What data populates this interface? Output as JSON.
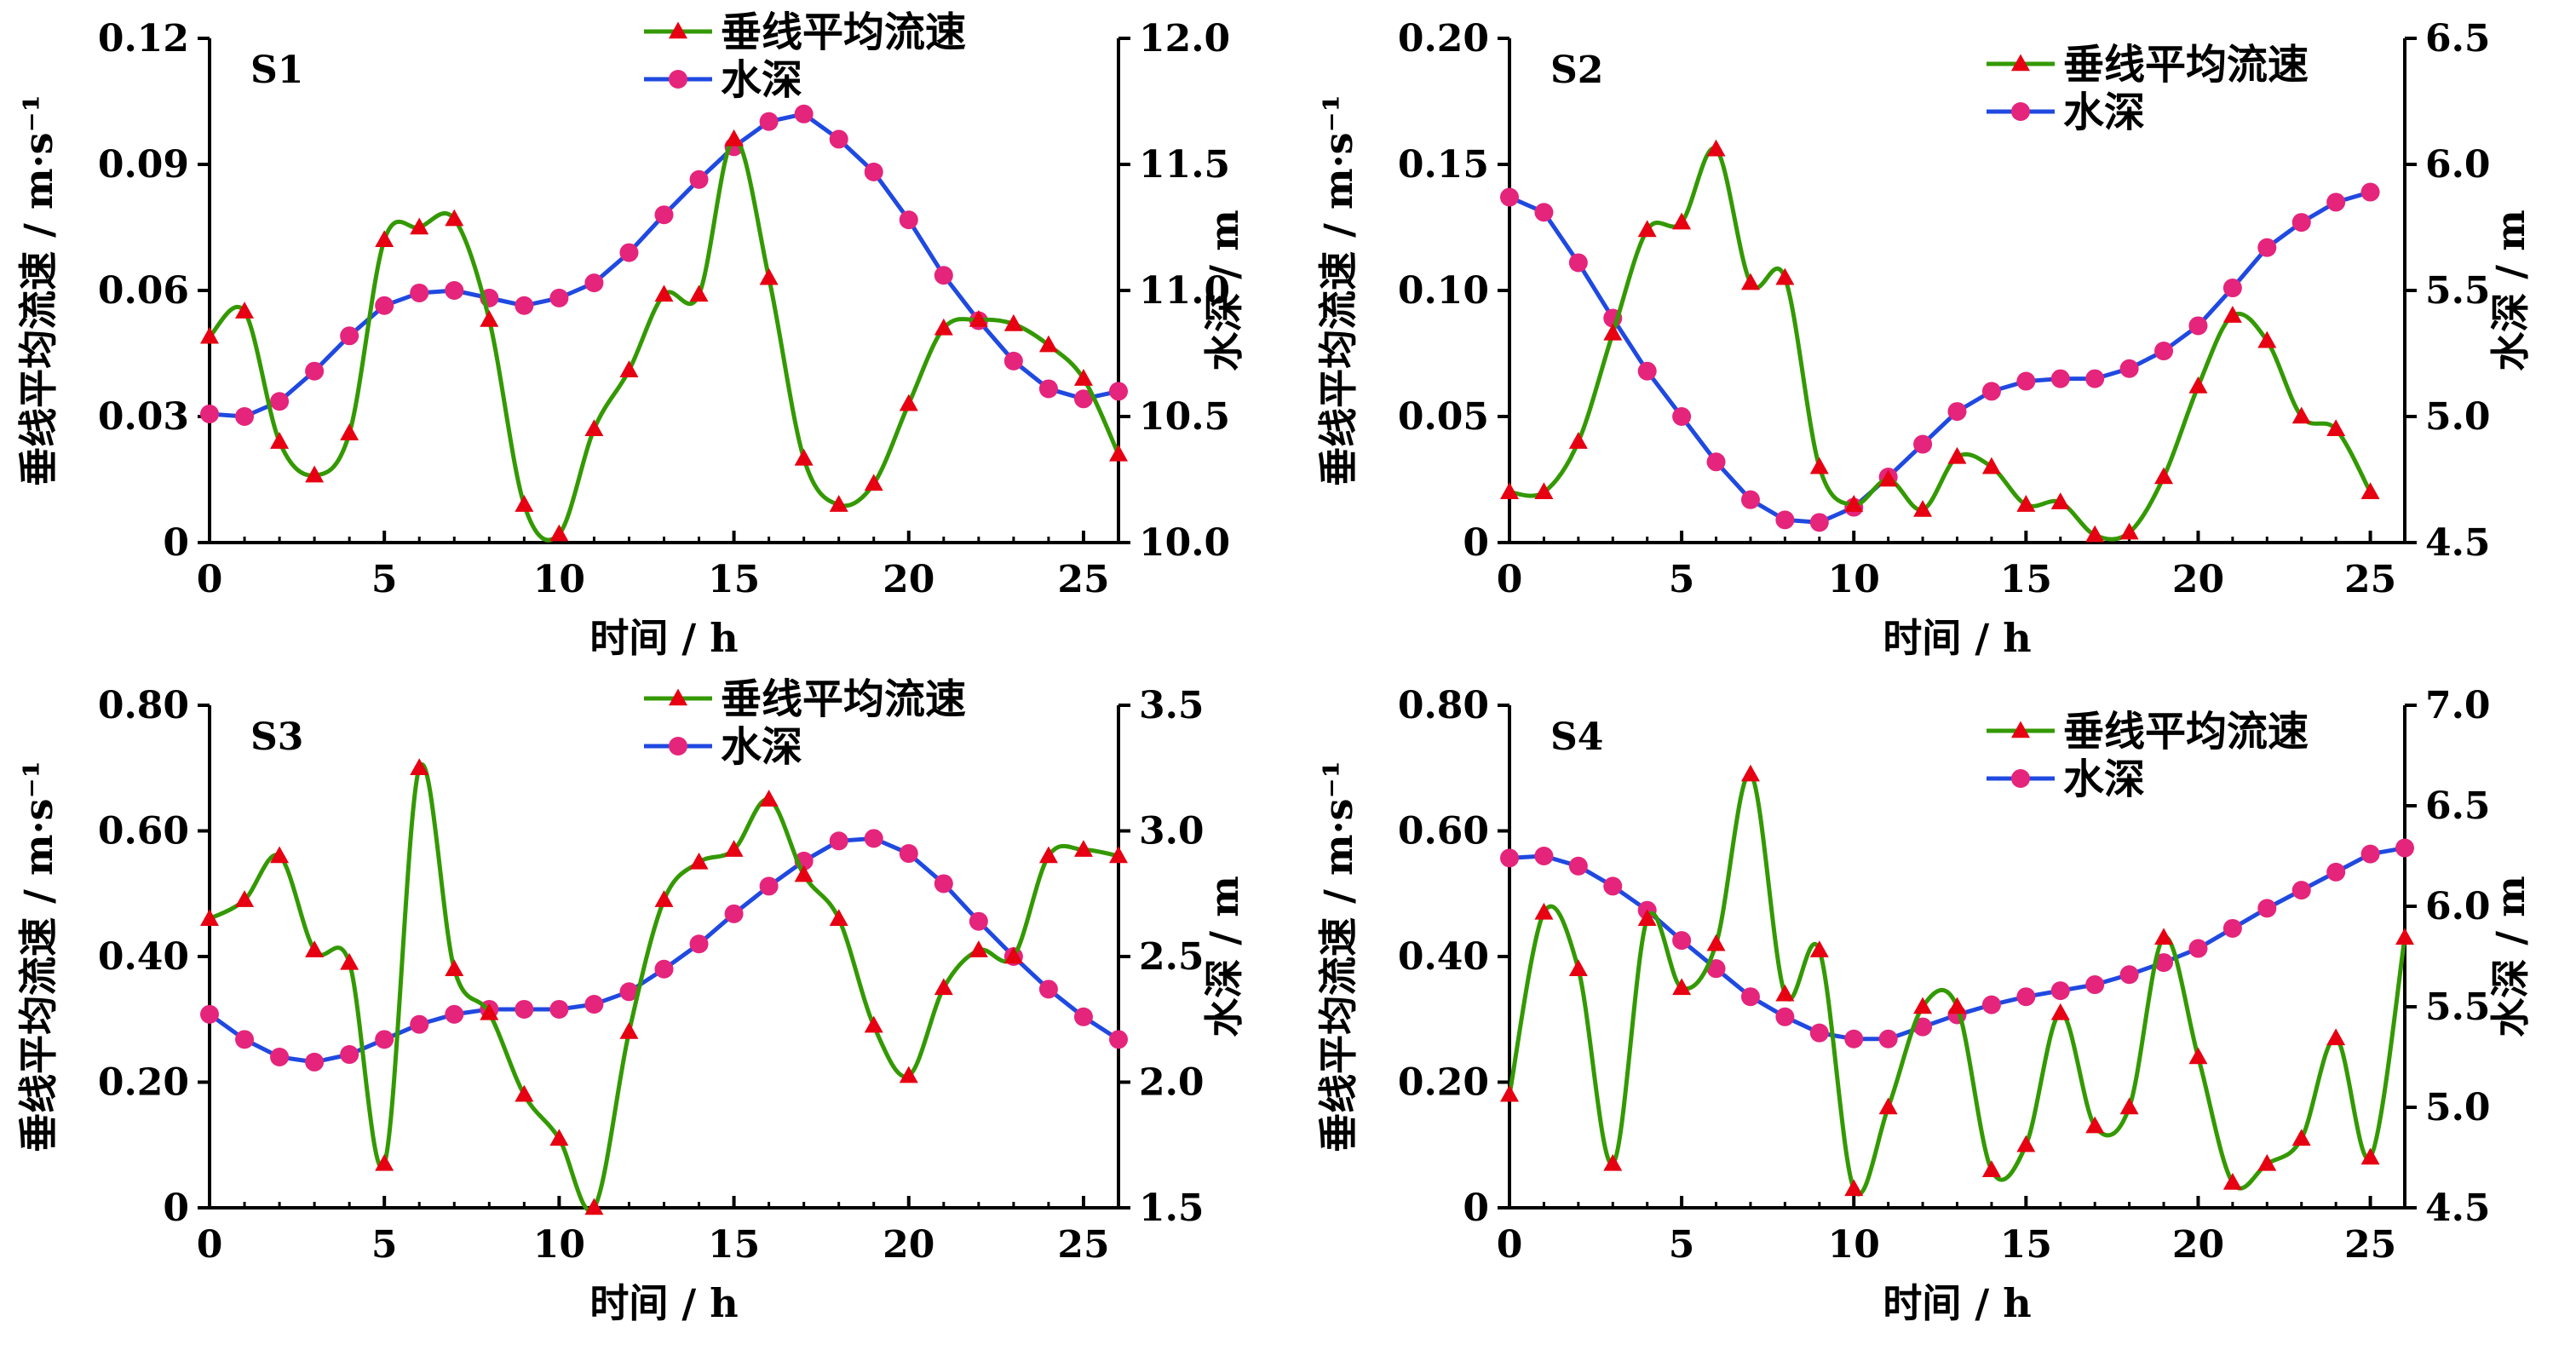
{
  "chart_data": [
    {
      "type": "line",
      "title": "S1",
      "xlabel": "时间 / h",
      "ylabel_left": "垂线平均流速 / m·s⁻¹",
      "ylabel_right": "水深 / m",
      "xlim": [
        0,
        26
      ],
      "ylim_left": [
        0,
        0.12
      ],
      "ylim_right": [
        10.0,
        12.0
      ],
      "x_ticks": [
        "0",
        "5",
        "10",
        "15",
        "20",
        "25"
      ],
      "y_ticks_left": [
        "0",
        "0.03",
        "0.06",
        "0.09",
        "0.12"
      ],
      "y_ticks_right": [
        "10.0",
        "10.5",
        "11.0",
        "11.5",
        "12.0"
      ],
      "legend": [
        "垂线平均流速",
        "水深"
      ],
      "series": [
        {
          "name": "垂线平均流速",
          "axis": "left",
          "color": "#339900",
          "marker": "triangle",
          "marker_color": "#e60012",
          "x": [
            0,
            1,
            2,
            3,
            4,
            5,
            6,
            7,
            8,
            9,
            10,
            11,
            12,
            13,
            14,
            15,
            16,
            17,
            18,
            19,
            20,
            21,
            22,
            23,
            24,
            25,
            26
          ],
          "values": [
            0.049,
            0.055,
            0.024,
            0.016,
            0.026,
            0.072,
            0.075,
            0.077,
            0.053,
            0.009,
            0.002,
            0.027,
            0.041,
            0.059,
            0.059,
            0.096,
            0.063,
            0.02,
            0.009,
            0.014,
            0.033,
            0.051,
            0.053,
            0.052,
            0.047,
            0.039,
            0.021
          ]
        },
        {
          "name": "水深",
          "axis": "right",
          "color": "#1f49e0",
          "marker": "circle",
          "marker_color": "#e5247b",
          "x": [
            0,
            1,
            2,
            3,
            4,
            5,
            6,
            7,
            8,
            9,
            10,
            11,
            12,
            13,
            14,
            15,
            16,
            17,
            18,
            19,
            20,
            21,
            22,
            23,
            24,
            25,
            26
          ],
          "values": [
            10.51,
            10.5,
            10.56,
            10.68,
            10.82,
            10.94,
            10.99,
            11.0,
            10.97,
            10.94,
            10.97,
            11.03,
            11.15,
            11.3,
            11.44,
            11.57,
            11.67,
            11.7,
            11.6,
            11.47,
            11.28,
            11.06,
            10.88,
            10.72,
            10.61,
            10.57,
            10.6
          ]
        }
      ]
    },
    {
      "type": "line",
      "title": "S2",
      "xlabel": "时间 / h",
      "ylabel_left": "垂线平均流速 / m·s⁻¹",
      "ylabel_right": "水深 / m",
      "xlim": [
        0,
        26
      ],
      "ylim_left": [
        0,
        0.2
      ],
      "ylim_right": [
        4.5,
        6.5
      ],
      "x_ticks": [
        "0",
        "5",
        "10",
        "15",
        "20",
        "25"
      ],
      "y_ticks_left": [
        "0",
        "0.05",
        "0.10",
        "0.15",
        "0.20"
      ],
      "y_ticks_right": [
        "4.5",
        "5.0",
        "5.5",
        "6.0",
        "6.5"
      ],
      "legend": [
        "垂线平均流速",
        "水深"
      ],
      "series": [
        {
          "name": "垂线平均流速",
          "axis": "left",
          "color": "#339900",
          "marker": "triangle",
          "marker_color": "#e60012",
          "x": [
            0,
            1,
            2,
            3,
            4,
            5,
            6,
            7,
            8,
            9,
            10,
            11,
            12,
            13,
            14,
            15,
            16,
            17,
            18,
            19,
            20,
            21,
            22,
            23,
            24,
            25
          ],
          "values": [
            0.02,
            0.02,
            0.04,
            0.083,
            0.124,
            0.127,
            0.156,
            0.103,
            0.105,
            0.03,
            0.015,
            0.025,
            0.013,
            0.034,
            0.03,
            0.015,
            0.016,
            0.003,
            0.004,
            0.026,
            0.062,
            0.09,
            0.08,
            0.05,
            0.045,
            0.02
          ]
        },
        {
          "name": "水深",
          "axis": "right",
          "color": "#1f49e0",
          "marker": "circle",
          "marker_color": "#e5247b",
          "x": [
            0,
            1,
            2,
            3,
            4,
            5,
            6,
            7,
            8,
            9,
            10,
            11,
            12,
            13,
            14,
            15,
            16,
            17,
            18,
            19,
            20,
            21,
            22,
            23,
            24,
            25
          ],
          "values": [
            5.87,
            5.81,
            5.61,
            5.39,
            5.18,
            5.0,
            4.82,
            4.67,
            4.59,
            4.58,
            4.64,
            4.76,
            4.89,
            5.02,
            5.1,
            5.14,
            5.15,
            5.15,
            5.19,
            5.26,
            5.36,
            5.51,
            5.67,
            5.77,
            5.85,
            5.89
          ]
        }
      ]
    },
    {
      "type": "line",
      "title": "S3",
      "xlabel": "时间 / h",
      "ylabel_left": "垂线平均流速 / m·s⁻¹",
      "ylabel_right": "水深 / m",
      "xlim": [
        0,
        26
      ],
      "ylim_left": [
        0,
        0.8
      ],
      "ylim_right": [
        1.5,
        3.5
      ],
      "x_ticks": [
        "0",
        "5",
        "10",
        "15",
        "20",
        "25"
      ],
      "y_ticks_left": [
        "0",
        "0.20",
        "0.40",
        "0.60",
        "0.80"
      ],
      "y_ticks_right": [
        "1.5",
        "2.0",
        "2.5",
        "3.0",
        "3.5"
      ],
      "legend": [
        "垂线平均流速",
        "水深"
      ],
      "series": [
        {
          "name": "垂线平均流速",
          "axis": "left",
          "color": "#339900",
          "marker": "triangle",
          "marker_color": "#e60012",
          "x": [
            0,
            1,
            2,
            3,
            4,
            5,
            6,
            7,
            8,
            9,
            10,
            11,
            12,
            13,
            14,
            15,
            16,
            17,
            18,
            19,
            20,
            21,
            22,
            23,
            24,
            25,
            26
          ],
          "values": [
            0.46,
            0.49,
            0.56,
            0.41,
            0.39,
            0.07,
            0.7,
            0.38,
            0.31,
            0.18,
            0.11,
            0.0,
            0.28,
            0.49,
            0.55,
            0.57,
            0.65,
            0.53,
            0.46,
            0.29,
            0.21,
            0.35,
            0.41,
            0.4,
            0.56,
            0.57,
            0.56
          ]
        },
        {
          "name": "水深",
          "axis": "right",
          "color": "#1f49e0",
          "marker": "circle",
          "marker_color": "#e5247b",
          "x": [
            0,
            1,
            2,
            3,
            4,
            5,
            6,
            7,
            8,
            9,
            10,
            11,
            12,
            13,
            14,
            15,
            16,
            17,
            18,
            19,
            20,
            21,
            22,
            23,
            24,
            25,
            26
          ],
          "values": [
            2.27,
            2.17,
            2.1,
            2.08,
            2.11,
            2.17,
            2.23,
            2.27,
            2.29,
            2.29,
            2.29,
            2.31,
            2.36,
            2.45,
            2.55,
            2.67,
            2.78,
            2.88,
            2.96,
            2.97,
            2.91,
            2.79,
            2.64,
            2.5,
            2.37,
            2.26,
            2.17
          ]
        }
      ]
    },
    {
      "type": "line",
      "title": "S4",
      "xlabel": "时间 / h",
      "ylabel_left": "垂线平均流速 / m·s⁻¹",
      "ylabel_right": "水深 / m",
      "xlim": [
        0,
        26
      ],
      "ylim_left": [
        0,
        0.8
      ],
      "ylim_right": [
        4.5,
        7.0
      ],
      "x_ticks": [
        "0",
        "5",
        "10",
        "15",
        "20",
        "25"
      ],
      "y_ticks_left": [
        "0",
        "0.20",
        "0.40",
        "0.60",
        "0.80"
      ],
      "y_ticks_right": [
        "4.5",
        "5.0",
        "5.5",
        "6.0",
        "6.5",
        "7.0"
      ],
      "legend": [
        "垂线平均流速",
        "水深"
      ],
      "series": [
        {
          "name": "垂线平均流速",
          "axis": "left",
          "color": "#339900",
          "marker": "triangle",
          "marker_color": "#e60012",
          "x": [
            0,
            1,
            2,
            3,
            4,
            5,
            6,
            7,
            8,
            9,
            10,
            11,
            12,
            13,
            14,
            15,
            16,
            17,
            18,
            19,
            20,
            21,
            22,
            23,
            24,
            25,
            26
          ],
          "values": [
            0.18,
            0.47,
            0.38,
            0.07,
            0.46,
            0.35,
            0.42,
            0.69,
            0.34,
            0.41,
            0.03,
            0.16,
            0.32,
            0.32,
            0.06,
            0.1,
            0.31,
            0.13,
            0.16,
            0.43,
            0.24,
            0.04,
            0.07,
            0.11,
            0.27,
            0.08,
            0.43
          ]
        },
        {
          "name": "水深",
          "axis": "right",
          "color": "#1f49e0",
          "marker": "circle",
          "marker_color": "#e5247b",
          "x": [
            0,
            1,
            2,
            3,
            4,
            5,
            6,
            7,
            8,
            9,
            10,
            11,
            12,
            13,
            14,
            15,
            16,
            17,
            18,
            19,
            20,
            21,
            22,
            23,
            24,
            25,
            26
          ],
          "values": [
            6.24,
            6.25,
            6.2,
            6.1,
            5.98,
            5.83,
            5.69,
            5.55,
            5.45,
            5.37,
            5.34,
            5.34,
            5.4,
            5.46,
            5.51,
            5.55,
            5.58,
            5.61,
            5.66,
            5.72,
            5.79,
            5.89,
            5.99,
            6.08,
            6.17,
            6.26,
            6.29
          ]
        }
      ]
    }
  ]
}
